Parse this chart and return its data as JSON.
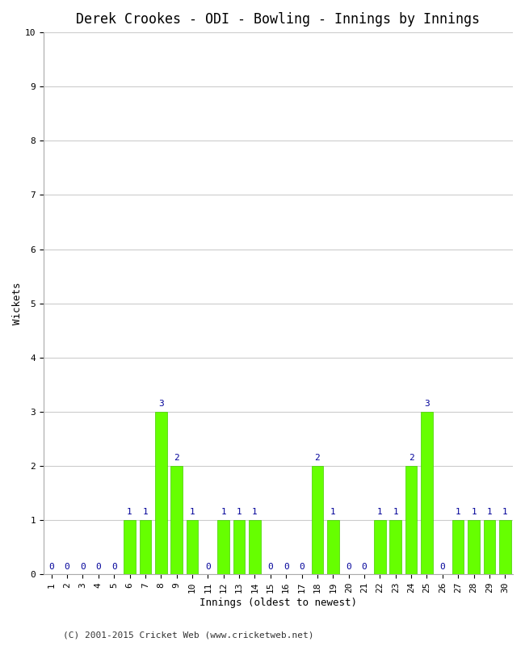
{
  "title": "Derek Crookes - ODI - Bowling - Innings by Innings",
  "xlabel": "Innings (oldest to newest)",
  "ylabel": "Wickets",
  "background_color": "#ffffff",
  "bar_color": "#66ff00",
  "bar_edge_color": "#44cc00",
  "label_color": "#000099",
  "grid_color": "#cccccc",
  "xlim": [
    0.5,
    30.5
  ],
  "ylim": [
    0,
    10
  ],
  "yticks": [
    0,
    1,
    2,
    3,
    4,
    5,
    6,
    7,
    8,
    9,
    10
  ],
  "xtick_labels": [
    "1",
    "2",
    "3",
    "4",
    "5",
    "6",
    "7",
    "8",
    "9",
    "10",
    "11",
    "12",
    "13",
    "14",
    "15",
    "16",
    "17",
    "18",
    "19",
    "20",
    "21",
    "22",
    "23",
    "24",
    "25",
    "26",
    "27",
    "28",
    "29",
    "30"
  ],
  "innings": [
    1,
    2,
    3,
    4,
    5,
    6,
    7,
    8,
    9,
    10,
    11,
    12,
    13,
    14,
    15,
    16,
    17,
    18,
    19,
    20,
    21,
    22,
    23,
    24,
    25,
    26,
    27,
    28,
    29,
    30
  ],
  "wickets": [
    0,
    0,
    0,
    0,
    0,
    1,
    1,
    3,
    2,
    1,
    0,
    1,
    1,
    1,
    0,
    0,
    0,
    2,
    1,
    0,
    0,
    1,
    1,
    2,
    3,
    0,
    1,
    1,
    1,
    1
  ],
  "footnote": "(C) 2001-2015 Cricket Web (www.cricketweb.net)",
  "title_fontsize": 12,
  "axis_fontsize": 9,
  "tick_fontsize": 8,
  "label_fontsize": 8,
  "footnote_fontsize": 8
}
